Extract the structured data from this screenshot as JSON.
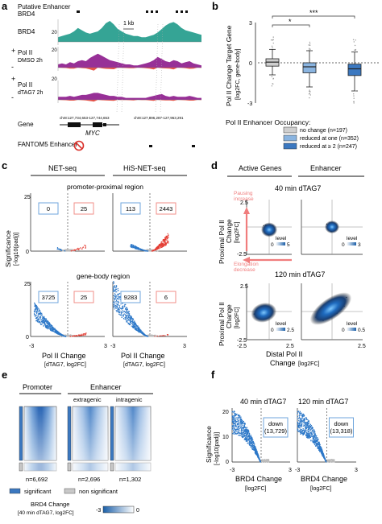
{
  "panel_a": {
    "letter": "a",
    "track_labels": [
      "Putative Enhancer",
      "BRD4",
      "Pol II",
      "DMSO 2h",
      "Pol II",
      "dTAG7 2h",
      "Gene",
      "FANTOM5 Enhancer"
    ],
    "scalebar": "1 kb",
    "scales": [
      "20",
      "20",
      "20"
    ],
    "strand_signs": [
      "+",
      "-",
      "+",
      "-"
    ],
    "coord_left": "chr8:127,734,653-127,744,653",
    "coord_right": "chr8:127,896,287-127,963,291",
    "gene_name": "MYC"
  },
  "panel_b": {
    "letter": "b",
    "ylabel": "Pol II Change Target Gene",
    "ylabel2": "[log2FC, gene-body]",
    "yticks": [
      "3",
      "0",
      "-3"
    ],
    "sig": [
      "*",
      "***"
    ],
    "legend_title": "Pol II Enhancer Occupancy:",
    "colors": [
      "#cfcfcf",
      "#8ab4e0",
      "#3b78c0"
    ]
  },
  "panel_c": {
    "letter": "c",
    "col_titles": [
      "NET-seq",
      "HiS-NET-seq"
    ],
    "row_titles": [
      "promoter-proximal region",
      "gene-body region"
    ],
    "ylabel": "Significance",
    "ylabel2": "[-log10(padj)]",
    "yticks": [
      "25",
      "0"
    ],
    "xticks": [
      "-3",
      "3"
    ],
    "xlabel": "Pol II Change",
    "xlabel2": "[dTAG7, log2FC]",
    "counts": [
      [
        "0",
        "25"
      ],
      [
        "113",
        "2443"
      ],
      [
        "3725",
        "25"
      ],
      [
        "9283",
        "6"
      ]
    ]
  },
  "panel_d": {
    "letter": "d",
    "col_titles": [
      "Active Genes",
      "Enhancer"
    ],
    "row_titles": [
      "40 min dTAG7",
      "120 min dTAG7"
    ],
    "ylabel": "Proximal Pol II",
    "ylabel2": "Change",
    "ylabel3": "[log2FC]",
    "yticks": [
      "2.5",
      "-2.5"
    ],
    "xticks": [
      "-2.5",
      "2.5",
      "2.5"
    ],
    "xlabel": "Distal Pol II",
    "xlabel2": "Change",
    "xlabel3": "[log2FC]",
    "annot_up": [
      "Pausing",
      "increase"
    ],
    "annot_down": [
      "Elongation",
      "decrease"
    ],
    "level_label": "level",
    "levels": [
      [
        "0",
        "5"
      ],
      [
        "0",
        "3"
      ],
      [
        "0",
        "2.5"
      ],
      [
        "0",
        "0.5"
      ]
    ]
  },
  "panel_e": {
    "letter": "e",
    "headers": [
      "Promoter",
      "Enhancer"
    ],
    "subheaders": [
      "extragenic",
      "intragenic"
    ],
    "counts": [
      "n=6,692",
      "n=2,696",
      "n=1,302"
    ],
    "legend": [
      "significant",
      "non significant"
    ],
    "scale_title": "BRD4 Change",
    "scale_title2": "[40 min dTAG7, log2FC]",
    "scale_ticks": [
      "-3",
      "0"
    ]
  },
  "panel_f": {
    "letter": "f",
    "titles": [
      "40 min dTAG7",
      "120 min dTAG7"
    ],
    "ylabel": "Significance",
    "ylabel2": "[-log10(padj)]",
    "yticks": [
      "20",
      "10",
      "0"
    ],
    "xticks": [
      "-3",
      "3"
    ],
    "xlabel": "BRD4 Change",
    "xlabel2": "[log2FC]",
    "down_labels": [
      [
        "down",
        "(13,729)"
      ],
      [
        "down",
        "(13,318)"
      ]
    ]
  },
  "chart_data": [
    {
      "type": "area",
      "panel": "a",
      "series": [
        {
          "name": "BRD4",
          "color": "#1f9a8a",
          "values": [
            4,
            5,
            6,
            7,
            9,
            12,
            10,
            8,
            7,
            8,
            9,
            12,
            16,
            18,
            15,
            11,
            9,
            7,
            6,
            5,
            5,
            4,
            4,
            5,
            6,
            8,
            11,
            14,
            16,
            17,
            15,
            12,
            10,
            9,
            8,
            7,
            6
          ]
        },
        {
          "name": "Pol II DMSO 2h",
          "color": "#8c1a8c",
          "values": [
            3,
            4,
            3,
            5,
            4,
            6,
            7,
            6,
            9,
            11,
            13,
            11,
            9,
            7,
            6,
            5,
            4,
            3,
            3,
            2,
            2,
            3,
            4,
            5,
            7,
            10,
            8,
            6,
            5,
            7,
            6,
            4,
            5,
            6,
            4,
            3,
            2
          ]
        },
        {
          "name": "Pol II dTAG7 2h",
          "color": "#8c1a8c",
          "values": [
            3,
            3,
            3,
            4,
            3,
            4,
            5,
            5,
            6,
            7,
            7,
            6,
            5,
            4,
            4,
            3,
            3,
            2,
            2,
            2,
            2,
            2,
            2,
            3,
            4,
            5,
            6,
            4,
            3,
            4,
            3,
            3,
            3,
            4,
            3,
            2,
            2
          ]
        }
      ]
    },
    {
      "type": "box",
      "panel": "b",
      "ylim": [
        -3,
        3
      ],
      "series": [
        {
          "name": "no change (n=197)",
          "q1": -0.25,
          "median": 0.05,
          "q3": 0.3,
          "whisker_low": -0.9,
          "whisker_high": 1.0
        },
        {
          "name": "reduced at one (n=352)",
          "q1": -0.75,
          "median": -0.3,
          "q3": 0.0,
          "whisker_low": -1.8,
          "whisker_high": 0.9
        },
        {
          "name": "reduced at ≥ 2 (n=247)",
          "q1": -0.95,
          "median": -0.45,
          "q3": -0.1,
          "whisker_low": -2.1,
          "whisker_high": 0.8
        }
      ]
    },
    {
      "type": "scatter",
      "panel": "c",
      "xlim": [
        -3,
        3
      ],
      "ylim": [
        0,
        25
      ],
      "series": [
        {
          "name": "NET-seq promoter-proximal",
          "down": 0,
          "up": 25
        },
        {
          "name": "HiS-NET-seq promoter-proximal",
          "down": 113,
          "up": 2443
        },
        {
          "name": "NET-seq gene-body",
          "down": 3725,
          "up": 25
        },
        {
          "name": "HiS-NET-seq gene-body",
          "down": 9283,
          "up": 6
        }
      ]
    },
    {
      "type": "heatmap",
      "panel": "d",
      "xlim": [
        -2.5,
        2.5
      ],
      "ylim": [
        -2.5,
        2.5
      ],
      "series": [
        {
          "name": "Active Genes 40 min",
          "level_max": 5
        },
        {
          "name": "Enhancer 40 min",
          "level_max": 3
        },
        {
          "name": "Active Genes 120 min",
          "level_max": 2.5
        },
        {
          "name": "Enhancer 120 min",
          "level_max": 0.5
        }
      ]
    },
    {
      "type": "heatmap",
      "panel": "e",
      "series": [
        {
          "name": "Promoter",
          "n": 6692
        },
        {
          "name": "Enhancer extragenic",
          "n": 2696
        },
        {
          "name": "Enhancer intragenic",
          "n": 1302
        }
      ]
    },
    {
      "type": "scatter",
      "panel": "f",
      "xlim": [
        -3,
        3
      ],
      "ylim": [
        0,
        20
      ],
      "series": [
        {
          "name": "40 min dTAG7",
          "down": 13729
        },
        {
          "name": "120 min dTAG7",
          "down": 13318
        }
      ]
    }
  ]
}
